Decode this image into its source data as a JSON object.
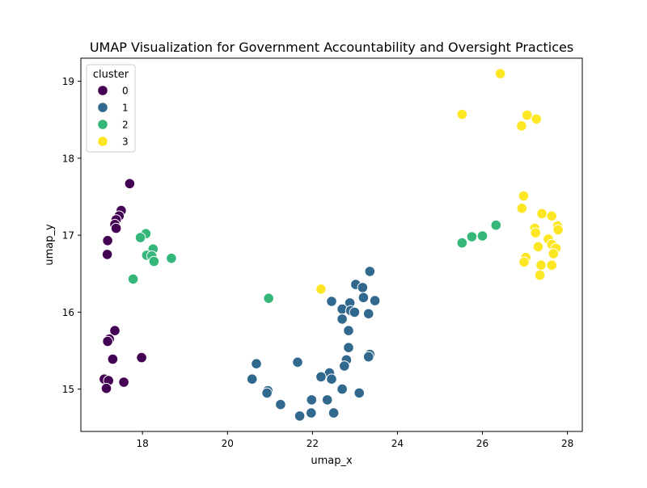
{
  "chart_data": {
    "type": "scatter",
    "title": "UMAP Visualization for Government Accountability and Oversight Practices",
    "xlabel": "umap_x",
    "ylabel": "umap_y",
    "xlim": [
      16.55,
      28.35
    ],
    "ylim": [
      14.45,
      19.3
    ],
    "xticks": [
      18,
      20,
      22,
      24,
      26,
      28
    ],
    "yticks": [
      15,
      16,
      17,
      18,
      19
    ],
    "grid": false,
    "legend": {
      "title": "cluster",
      "placement": "top-left"
    },
    "colors": {
      "0": "#440154",
      "1": "#31688e",
      "2": "#35b779",
      "3": "#fde725"
    },
    "series": [
      {
        "name": "0",
        "points": [
          [
            17.7,
            17.67
          ],
          [
            17.5,
            17.32
          ],
          [
            17.45,
            17.25
          ],
          [
            17.38,
            17.2
          ],
          [
            17.35,
            17.14
          ],
          [
            17.38,
            17.09
          ],
          [
            17.18,
            16.93
          ],
          [
            17.17,
            16.75
          ],
          [
            17.35,
            15.76
          ],
          [
            17.22,
            15.65
          ],
          [
            17.18,
            15.62
          ],
          [
            17.3,
            15.39
          ],
          [
            17.98,
            15.41
          ],
          [
            17.1,
            15.13
          ],
          [
            17.2,
            15.11
          ],
          [
            17.56,
            15.09
          ],
          [
            17.15,
            15.01
          ]
        ]
      },
      {
        "name": "1",
        "points": [
          [
            23.35,
            16.53
          ],
          [
            23.02,
            16.36
          ],
          [
            23.18,
            16.32
          ],
          [
            23.2,
            16.19
          ],
          [
            23.47,
            16.15
          ],
          [
            22.45,
            16.14
          ],
          [
            22.88,
            16.12
          ],
          [
            22.7,
            16.04
          ],
          [
            22.9,
            16.02
          ],
          [
            22.99,
            16.0
          ],
          [
            23.32,
            15.98
          ],
          [
            22.7,
            15.91
          ],
          [
            22.85,
            15.76
          ],
          [
            22.85,
            15.54
          ],
          [
            23.35,
            15.45
          ],
          [
            23.32,
            15.42
          ],
          [
            22.8,
            15.38
          ],
          [
            22.75,
            15.3
          ],
          [
            20.68,
            15.33
          ],
          [
            21.65,
            15.35
          ],
          [
            22.4,
            15.21
          ],
          [
            22.2,
            15.16
          ],
          [
            22.45,
            15.13
          ],
          [
            20.58,
            15.13
          ],
          [
            22.7,
            15.0
          ],
          [
            20.95,
            14.98
          ],
          [
            20.93,
            14.95
          ],
          [
            23.1,
            14.95
          ],
          [
            21.98,
            14.86
          ],
          [
            22.35,
            14.86
          ],
          [
            21.25,
            14.8
          ],
          [
            21.97,
            14.69
          ],
          [
            22.5,
            14.69
          ],
          [
            21.7,
            14.65
          ]
        ]
      },
      {
        "name": "2",
        "points": [
          [
            18.08,
            17.02
          ],
          [
            17.95,
            16.97
          ],
          [
            18.25,
            16.82
          ],
          [
            18.1,
            16.74
          ],
          [
            18.22,
            16.73
          ],
          [
            18.68,
            16.7
          ],
          [
            18.27,
            16.66
          ],
          [
            17.78,
            16.43
          ],
          [
            20.97,
            16.18
          ],
          [
            26.32,
            17.13
          ],
          [
            26.0,
            16.99
          ],
          [
            25.75,
            16.98
          ],
          [
            25.52,
            16.9
          ]
        ]
      },
      {
        "name": "3",
        "points": [
          [
            26.42,
            19.1
          ],
          [
            25.52,
            18.57
          ],
          [
            27.05,
            18.56
          ],
          [
            27.27,
            18.51
          ],
          [
            26.92,
            18.42
          ],
          [
            26.97,
            17.51
          ],
          [
            26.93,
            17.35
          ],
          [
            27.4,
            17.28
          ],
          [
            27.63,
            17.25
          ],
          [
            27.77,
            17.12
          ],
          [
            27.23,
            17.09
          ],
          [
            27.78,
            17.07
          ],
          [
            27.25,
            17.03
          ],
          [
            27.55,
            16.95
          ],
          [
            27.63,
            16.88
          ],
          [
            27.31,
            16.85
          ],
          [
            27.73,
            16.83
          ],
          [
            27.67,
            16.76
          ],
          [
            27.02,
            16.71
          ],
          [
            26.98,
            16.65
          ],
          [
            27.38,
            16.61
          ],
          [
            27.63,
            16.61
          ],
          [
            27.35,
            16.48
          ],
          [
            22.2,
            16.3
          ]
        ]
      }
    ]
  }
}
